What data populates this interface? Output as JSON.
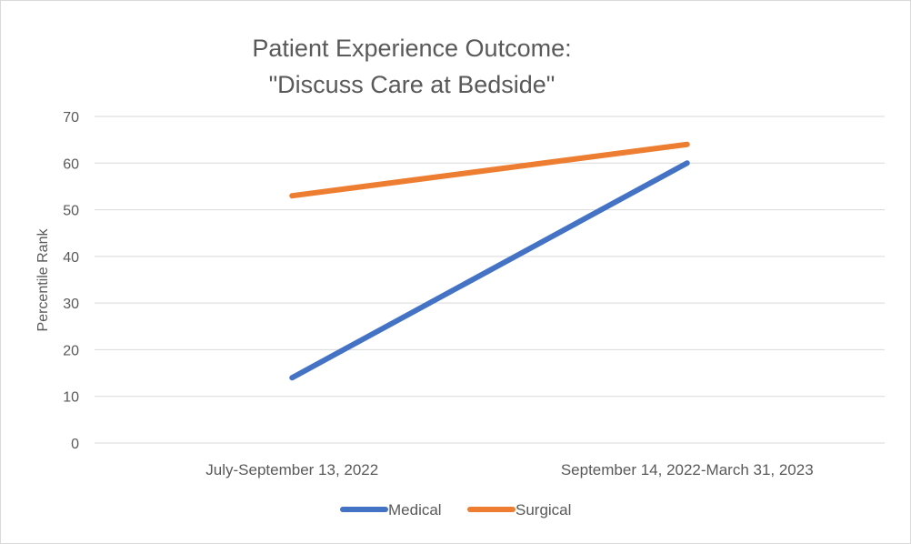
{
  "chart_data": {
    "type": "line",
    "title": [
      "Patient Experience Outcome:",
      "\"Discuss Care at Bedside\""
    ],
    "xlabel": "",
    "ylabel": "Percentile Rank",
    "categories": [
      "July-September 13, 2022",
      "September 14, 2022-March 31, 2023"
    ],
    "ylim": [
      0,
      70
    ],
    "yticks": [
      0,
      10,
      20,
      30,
      40,
      50,
      60,
      70
    ],
    "grid": true,
    "legend_position": "bottom",
    "series": [
      {
        "name": "Medical",
        "color": "#4472c4",
        "values": [
          14,
          60
        ]
      },
      {
        "name": "Surgical",
        "color": "#ed7d31",
        "values": [
          53,
          64
        ]
      }
    ]
  }
}
